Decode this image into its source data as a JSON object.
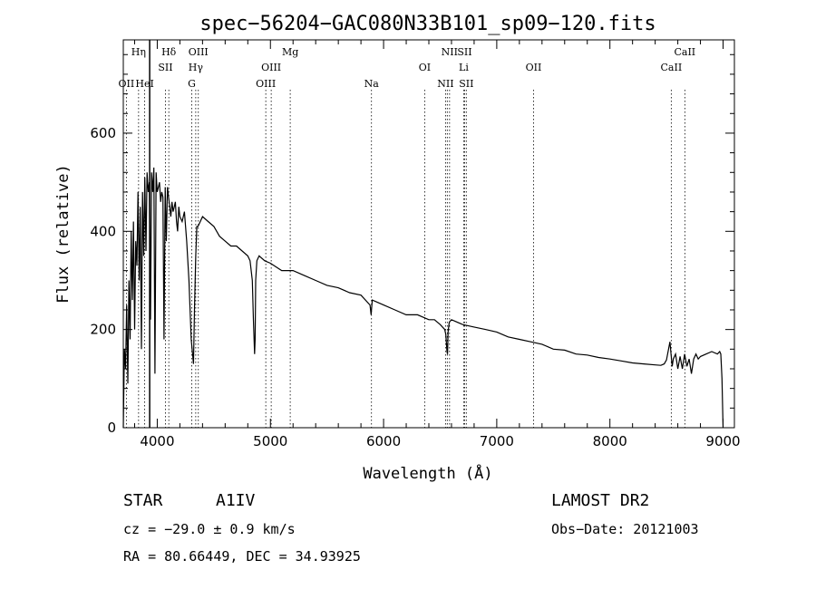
{
  "chart_data": {
    "type": "line",
    "title": "spec−56204−GAC080N33B101_sp09−120.fits",
    "xlabel": "Wavelength (Å)",
    "ylabel": "Flux (relative)",
    "xlim": [
      3700,
      9100
    ],
    "ylim": [
      0,
      790
    ],
    "x_ticks": [
      4000,
      5000,
      6000,
      7000,
      8000,
      9000
    ],
    "y_ticks": [
      0,
      200,
      400,
      600
    ],
    "grid": false,
    "series": [
      {
        "x": [
          3700,
          3710,
          3720,
          3730,
          3740,
          3750,
          3760,
          3770,
          3780,
          3790,
          3800,
          3810,
          3820,
          3830,
          3840,
          3850,
          3860,
          3870,
          3880,
          3890,
          3900,
          3910,
          3920,
          3930,
          3940,
          3950,
          3960,
          3970,
          3980,
          3990,
          4000,
          4010,
          4020,
          4030,
          4040,
          4050,
          4060,
          4070,
          4080,
          4090,
          4100,
          4110,
          4120,
          4130,
          4140,
          4150,
          4160,
          4170,
          4180,
          4190,
          4200,
          4220,
          4240,
          4260,
          4280,
          4300,
          4320,
          4330,
          4340,
          4350,
          4360,
          4380,
          4400,
          4450,
          4500,
          4550,
          4600,
          4650,
          4700,
          4750,
          4800,
          4820,
          4840,
          4850,
          4860,
          4865,
          4870,
          4880,
          4900,
          4950,
          5000,
          5100,
          5200,
          5300,
          5400,
          5500,
          5600,
          5700,
          5800,
          5880,
          5890,
          5900,
          5950,
          6000,
          6100,
          6200,
          6300,
          6400,
          6450,
          6500,
          6540,
          6550,
          6560,
          6565,
          6570,
          6580,
          6600,
          6700,
          6800,
          6900,
          7000,
          7100,
          7200,
          7300,
          7400,
          7500,
          7600,
          7700,
          7800,
          7900,
          8000,
          8100,
          8200,
          8300,
          8400,
          8450,
          8480,
          8500,
          8530,
          8540,
          8550,
          8560,
          8580,
          8600,
          8620,
          8640,
          8660,
          8680,
          8700,
          8720,
          8740,
          8760,
          8780,
          8800,
          8850,
          8900,
          8950,
          8970,
          8980,
          8990,
          9000
        ],
        "y": [
          0,
          160,
          120,
          250,
          90,
          300,
          180,
          400,
          260,
          420,
          200,
          380,
          330,
          480,
          300,
          450,
          160,
          480,
          350,
          510,
          360,
          520,
          480,
          500,
          220,
          520,
          480,
          530,
          110,
          520,
          480,
          490,
          500,
          460,
          480,
          470,
          180,
          490,
          380,
          490,
          470,
          450,
          430,
          460,
          440,
          450,
          460,
          420,
          400,
          450,
          430,
          420,
          440,
          380,
          300,
          180,
          130,
          250,
          350,
          410,
          410,
          420,
          430,
          420,
          410,
          390,
          380,
          370,
          370,
          360,
          350,
          340,
          300,
          220,
          150,
          180,
          300,
          340,
          350,
          340,
          335,
          320,
          320,
          310,
          300,
          290,
          285,
          275,
          270,
          250,
          230,
          260,
          255,
          250,
          240,
          230,
          230,
          220,
          220,
          210,
          200,
          190,
          155,
          150,
          195,
          215,
          220,
          210,
          205,
          200,
          195,
          185,
          180,
          175,
          170,
          160,
          158,
          150,
          148,
          143,
          140,
          136,
          132,
          130,
          128,
          127,
          130,
          138,
          175,
          150,
          125,
          140,
          150,
          120,
          145,
          120,
          150,
          125,
          140,
          110,
          140,
          150,
          140,
          145,
          150,
          155,
          150,
          155,
          150,
          100,
          0
        ]
      }
    ],
    "line_markers": [
      {
        "label": "OII",
        "wavelength": 3727,
        "row": 3
      },
      {
        "label": "Hη",
        "wavelength": 3835,
        "row": 1
      },
      {
        "label": "HeI",
        "wavelength": 3889,
        "row": 3
      },
      {
        "label": "Hδ",
        "wavelength": 4102,
        "row": 1
      },
      {
        "label": "SII",
        "wavelength": 4072,
        "row": 2
      },
      {
        "label": "OIII",
        "wavelength": 4363,
        "row": 1
      },
      {
        "label": "Hγ",
        "wavelength": 4340,
        "row": 2
      },
      {
        "label": "G",
        "wavelength": 4305,
        "row": 3
      },
      {
        "label": "Mg",
        "wavelength": 5175,
        "row": 1
      },
      {
        "label": "OIII",
        "wavelength": 5007,
        "row": 2
      },
      {
        "label": "OIII",
        "wavelength": 4959,
        "row": 3
      },
      {
        "label": "Na",
        "wavelength": 5893,
        "row": 3
      },
      {
        "label": "OI",
        "wavelength": 6363,
        "row": 2
      },
      {
        "label": "NII",
        "wavelength": 6583,
        "row": 1
      },
      {
        "label": "SII",
        "wavelength": 6716,
        "row": 1
      },
      {
        "label": "Li",
        "wavelength": 6708,
        "row": 2
      },
      {
        "label": "NII",
        "wavelength": 6548,
        "row": 3
      },
      {
        "label": "SII",
        "wavelength": 6731,
        "row": 3
      },
      {
        "label": "OII",
        "wavelength": 7325,
        "row": 2
      },
      {
        "label": "CaII",
        "wavelength": 8662,
        "row": 1
      },
      {
        "label": "CaII",
        "wavelength": 8542,
        "row": 2
      }
    ],
    "marker_lines": [
      3727,
      3835,
      3889,
      4072,
      4102,
      4305,
      4340,
      4363,
      4959,
      5007,
      5175,
      5893,
      6363,
      6548,
      6563,
      6583,
      6708,
      6716,
      6731,
      7325,
      8542,
      8662
    ],
    "solid_marker_line": 3933
  },
  "info": {
    "object_class": "STAR",
    "subclass": "A1IV",
    "survey": "LAMOST DR2",
    "redshift": "cz = −29.0 ± 0.9 km/s",
    "obs_date": "Obs−Date: 20121003",
    "coordinates": "RA =  80.66449, DEC =  34.93925"
  }
}
